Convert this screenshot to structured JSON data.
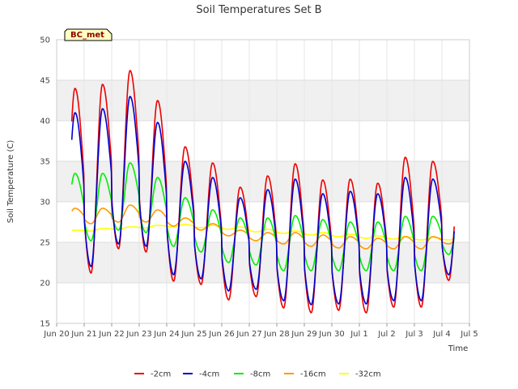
{
  "chart_data": {
    "type": "line",
    "title": "Soil Temperatures Set B",
    "xlabel": "Time",
    "ylabel": "Soil Temperature (C)",
    "ylim": [
      15,
      50
    ],
    "yticks": [
      15,
      20,
      25,
      30,
      35,
      40,
      45,
      50
    ],
    "xlim": [
      0,
      15
    ],
    "xticks": [
      {
        "x": 0,
        "label": "Jun 20"
      },
      {
        "x": 1,
        "label": "Jun 21"
      },
      {
        "x": 2,
        "label": "Jun 22"
      },
      {
        "x": 3,
        "label": "Jun 23"
      },
      {
        "x": 4,
        "label": "Jun 24"
      },
      {
        "x": 5,
        "label": "Jun 25"
      },
      {
        "x": 6,
        "label": "Jun 26"
      },
      {
        "x": 7,
        "label": "Jun 27"
      },
      {
        "x": 8,
        "label": "Jun 28"
      },
      {
        "x": 9,
        "label": "Jun 29"
      },
      {
        "x": 10,
        "label": "Jun 30"
      },
      {
        "x": 11,
        "label": "Jul 1"
      },
      {
        "x": 12,
        "label": "Jul 2"
      },
      {
        "x": 13,
        "label": "Jul 3"
      },
      {
        "x": 14,
        "label": "Jul 4"
      },
      {
        "x": 15,
        "label": "Jul 5"
      }
    ],
    "x_start": 0.55,
    "x_end": 14.45,
    "grid": true,
    "legend_position": "bottom",
    "badge": "BC_met",
    "series": [
      {
        "name": "-2cm",
        "color": "#ee0000",
        "daily_min": [
          21.5,
          21.2,
          24.2,
          23.8,
          20.2,
          19.8,
          17.9,
          18.3,
          16.9,
          16.3,
          16.6,
          16.3,
          17.0,
          17.0,
          20.3
        ],
        "daily_max": [
          44.0,
          44.5,
          46.2,
          42.5,
          36.8,
          34.8,
          31.8,
          33.2,
          34.7,
          32.7,
          32.8,
          32.3,
          35.5,
          35.0
        ]
      },
      {
        "name": "-4cm",
        "color": "#0000cc",
        "daily_min": [
          22.5,
          22.0,
          24.8,
          24.5,
          21.0,
          20.5,
          19.0,
          19.2,
          17.8,
          17.3,
          17.4,
          17.4,
          17.8,
          17.8,
          21.0
        ],
        "daily_max": [
          41.0,
          41.5,
          43.0,
          39.8,
          35.0,
          33.0,
          30.5,
          31.5,
          32.8,
          31.0,
          31.3,
          31.0,
          33.0,
          32.8
        ]
      },
      {
        "name": "-8cm",
        "color": "#00ee00",
        "daily_min": [
          26.0,
          25.2,
          26.5,
          26.2,
          24.5,
          23.8,
          22.5,
          22.2,
          21.5,
          21.5,
          21.5,
          21.5,
          21.5,
          21.5,
          23.5
        ],
        "daily_max": [
          33.5,
          33.5,
          34.8,
          33.0,
          30.5,
          29.0,
          28.0,
          28.0,
          28.3,
          27.8,
          27.5,
          27.5,
          28.2,
          28.2
        ]
      },
      {
        "name": "-16cm",
        "color": "#ff9900",
        "daily_min": [
          27.2,
          27.3,
          27.5,
          27.5,
          27.0,
          26.5,
          25.8,
          25.2,
          24.8,
          24.5,
          24.3,
          24.2,
          24.2,
          24.2,
          24.8
        ],
        "daily_max": [
          29.2,
          29.2,
          29.6,
          29.0,
          28.0,
          27.3,
          26.5,
          26.2,
          26.2,
          25.9,
          25.7,
          25.5,
          25.7,
          25.7
        ]
      },
      {
        "name": "-32cm",
        "color": "#ffff00",
        "daily_min": [
          26.2,
          26.4,
          26.6,
          26.8,
          26.9,
          26.8,
          26.6,
          26.3,
          26.1,
          25.9,
          25.7,
          25.5,
          25.4,
          25.3,
          25.3
        ],
        "daily_max": [
          26.5,
          26.7,
          26.9,
          27.1,
          27.2,
          27.1,
          26.9,
          26.6,
          26.4,
          26.2,
          26.0,
          25.8,
          25.7,
          25.6
        ]
      }
    ]
  }
}
